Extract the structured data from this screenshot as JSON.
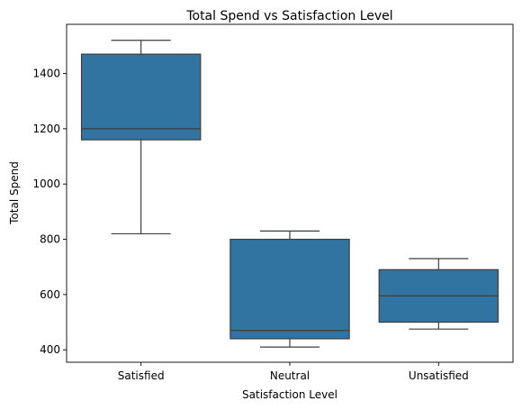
{
  "chart_data": {
    "type": "box",
    "title": "Total Spend vs Satisfaction Level",
    "xlabel": "Satisfaction Level",
    "ylabel": "Total Spend",
    "categories": [
      "Satisfied",
      "Neutral",
      "Unsatisfied"
    ],
    "boxes": [
      {
        "category": "Satisfied",
        "min": 820,
        "q1": 1160,
        "median": 1200,
        "q3": 1470,
        "max": 1520
      },
      {
        "category": "Neutral",
        "min": 410,
        "q1": 440,
        "median": 470,
        "q3": 800,
        "max": 830
      },
      {
        "category": "Unsatisfied",
        "min": 475,
        "q1": 500,
        "median": 595,
        "q3": 690,
        "max": 730
      }
    ],
    "yticks": [
      400,
      600,
      800,
      1000,
      1200,
      1400
    ],
    "ylim": [
      355,
      1578
    ],
    "grid": false,
    "box_color": "#3274a1",
    "line_color": "#3d3d3d"
  }
}
